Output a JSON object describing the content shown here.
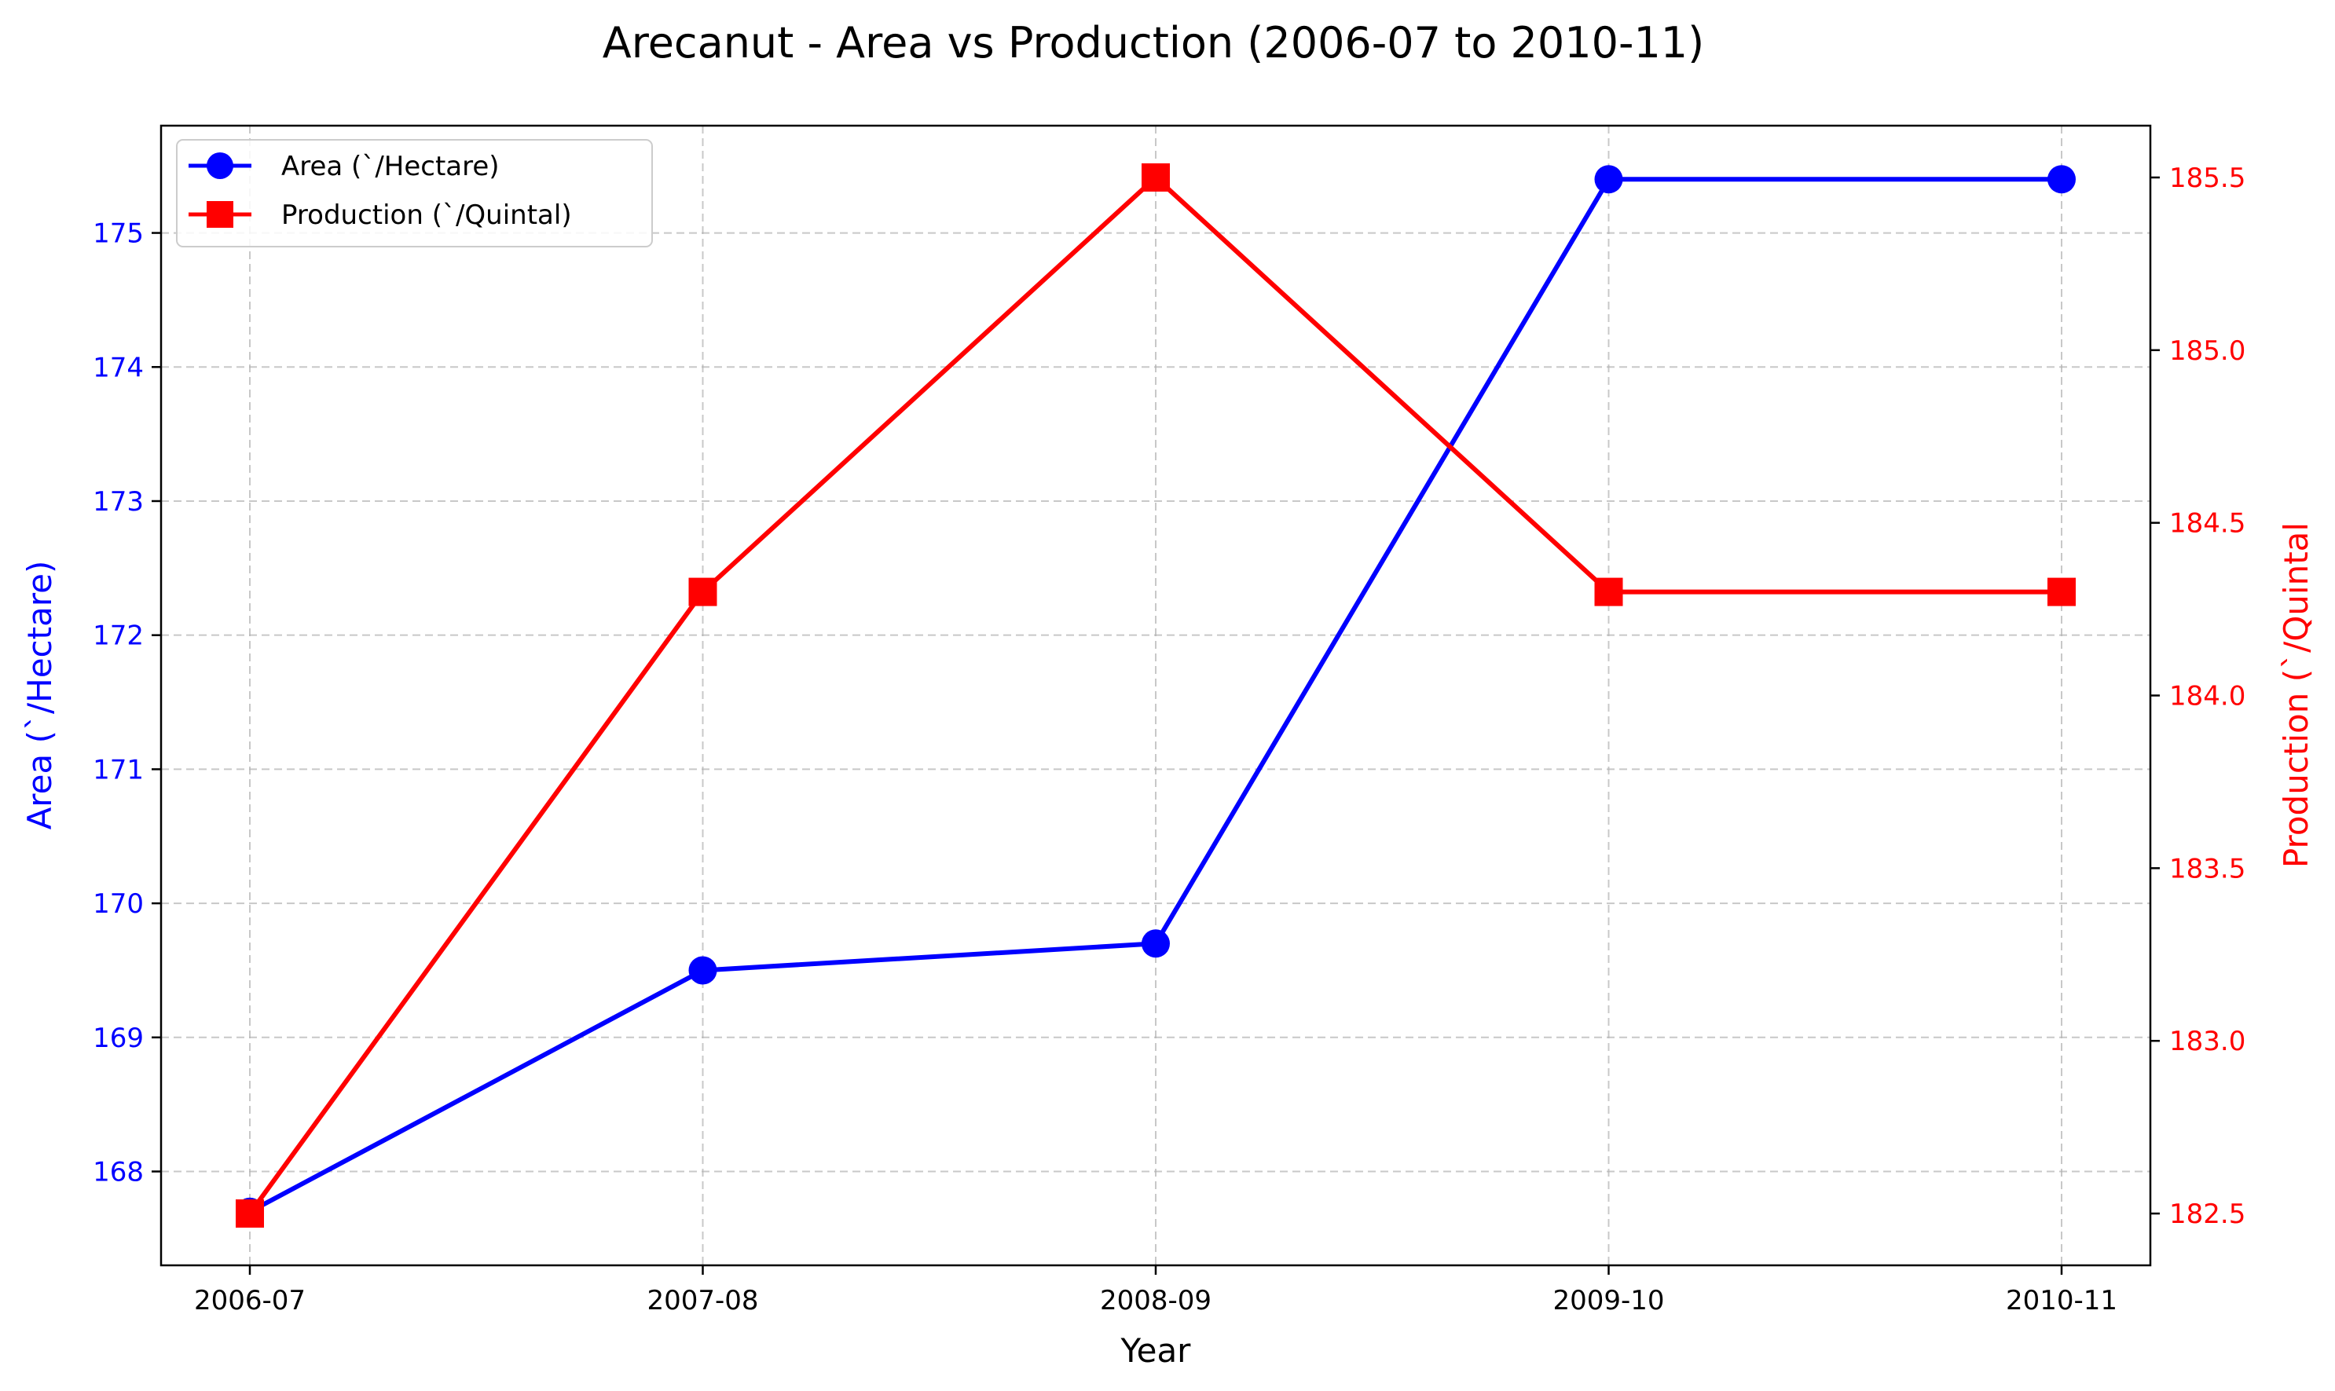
{
  "chart_data": {
    "type": "line",
    "title": "Arecanut   - Area vs Production (2006-07 to 2010-11)",
    "xlabel": "Year",
    "categories": [
      "2006-07",
      "2007-08",
      "2008-09",
      "2009-10",
      "2010-11"
    ],
    "series": [
      {
        "name": "Area (`/Hectare)",
        "axis": "left",
        "color": "#0000ff",
        "marker": "circle",
        "values": [
          167.7,
          169.5,
          169.7,
          175.4,
          175.4
        ]
      },
      {
        "name": "Production (`/Quintal)",
        "axis": "right",
        "color": "#ff0000",
        "marker": "square",
        "values": [
          182.5,
          184.3,
          185.5,
          184.3,
          184.3
        ]
      }
    ],
    "y_left": {
      "label": "Area (`/Hectare)",
      "ylim": [
        167.3,
        175.8
      ],
      "ticks": [
        168,
        169,
        170,
        171,
        172,
        173,
        174,
        175
      ],
      "color": "#0000ff"
    },
    "y_right": {
      "label": "Production (`/Quintal",
      "ylim": [
        182.35,
        185.65
      ],
      "ticks": [
        "182.5",
        "183.0",
        "183.5",
        "184.0",
        "184.5",
        "185.0",
        "185.5"
      ],
      "color": "#ff0000"
    },
    "grid": true,
    "legend": "top-left"
  }
}
